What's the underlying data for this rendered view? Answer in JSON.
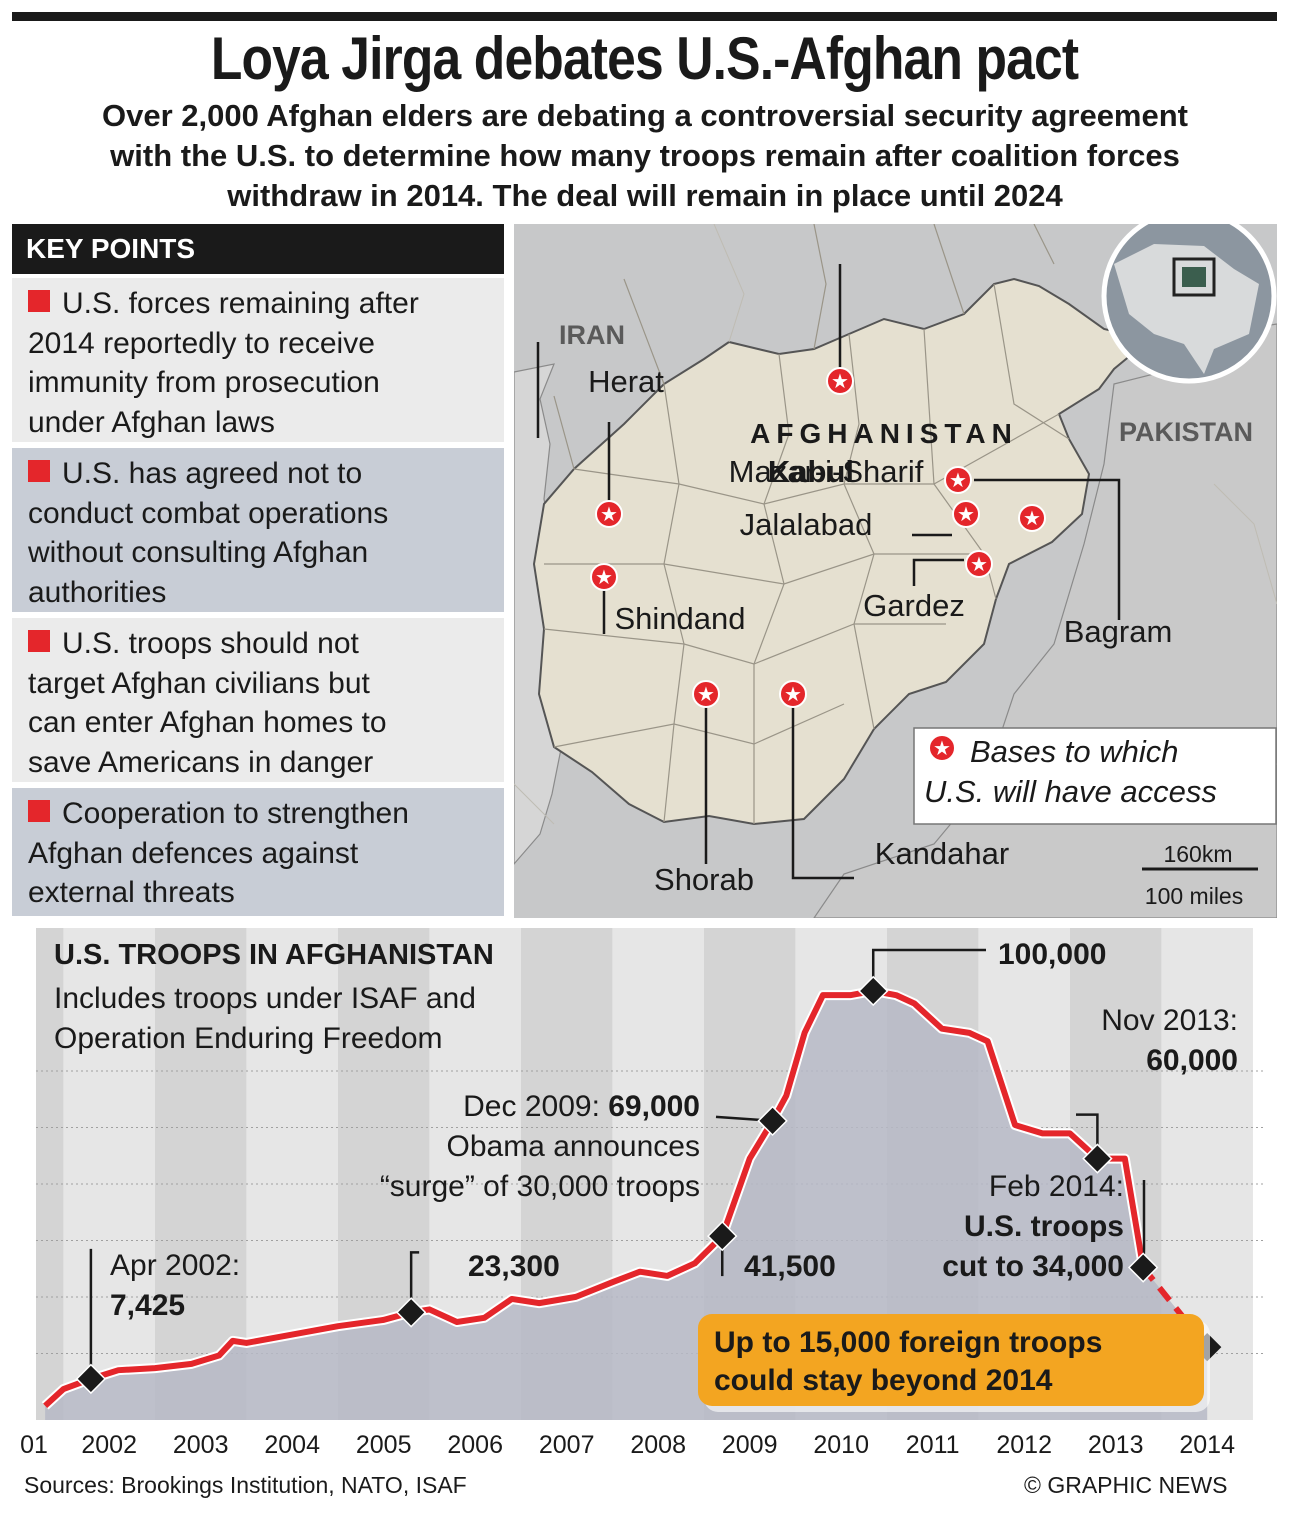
{
  "header": {
    "title": "Loya Jirga debates U.S.-Afghan pact",
    "subtitle_lines": [
      "Over 2,000 Afghan elders are debating a controversial security agreement",
      "with the U.S. to determine how many troops remain after coalition forces",
      "withdraw in 2014. The deal will remain in place until 2024"
    ]
  },
  "key_points": {
    "heading": "KEY POINTS",
    "items": [
      {
        "lines": [
          "U.S. forces remaining after",
          "2014 reportedly to receive",
          "immunity from prosecution",
          "under Afghan laws"
        ]
      },
      {
        "lines": [
          "U.S. has agreed not to",
          "conduct combat operations",
          "without consulting Afghan",
          "authorities"
        ]
      },
      {
        "lines": [
          "U.S. troops should not",
          "target Afghan civilians but",
          "can enter Afghan homes to",
          "save Americans in danger"
        ]
      },
      {
        "lines": [
          "Cooperation to strengthen",
          "Afghan defences against",
          "external threats"
        ]
      }
    ]
  },
  "map": {
    "country_label": "AFGHANISTAN",
    "neighbor_labels": [
      "IRAN",
      "PAKISTAN"
    ],
    "bases": [
      "Mazar-i-Sharif",
      "Herat",
      "Kabul",
      "Jalalabad",
      "Shindand",
      "Gardez",
      "Bagram",
      "Shorab",
      "Kandahar"
    ],
    "legend_lines": [
      "Bases to which",
      "U.S. will have access"
    ],
    "scale_km": "160km",
    "scale_miles": "100 miles",
    "colors": {
      "country": "#e5e0d0",
      "background": "#c7c8c9",
      "star": "#e4262b"
    }
  },
  "chart_data": {
    "type": "line",
    "title": "U.S. TROOPS IN AFGHANISTAN",
    "subtitle_lines": [
      "Includes troops under ISAF and",
      "Operation Enduring Freedom"
    ],
    "x_tick_labels": [
      "01",
      "2002",
      "2003",
      "2004",
      "2005",
      "2006",
      "2007",
      "2008",
      "2009",
      "2010",
      "2011",
      "2012",
      "2013",
      "2014"
    ],
    "ylim": [
      0,
      105000
    ],
    "series": [
      {
        "x": [
          2001.8,
          2002.0,
          2002.3,
          2002.6,
          2003.0,
          2003.4,
          2003.7,
          2003.85,
          2004.0,
          2004.5,
          2005.0,
          2005.5,
          2005.8,
          2006.0,
          2006.3,
          2006.6,
          2006.9,
          2007.2,
          2007.6,
          2008.0,
          2008.3,
          2008.6,
          2008.9,
          2009.2,
          2009.5,
          2009.75,
          2009.9,
          2010.1,
          2010.3,
          2010.6,
          2010.85,
          2011.1,
          2011.3,
          2011.6,
          2011.9,
          2012.1,
          2012.4,
          2012.7,
          2013.0,
          2013.3,
          2013.6,
          2013.8
        ],
        "values": [
          1000,
          5000,
          7425,
          9500,
          10000,
          11000,
          13000,
          16500,
          16000,
          18000,
          20000,
          21500,
          23300,
          24000,
          21000,
          22000,
          26500,
          25500,
          27000,
          30500,
          33000,
          32000,
          35000,
          41500,
          60000,
          69000,
          75000,
          90000,
          99000,
          99000,
          100000,
          99000,
          97000,
          91000,
          90000,
          88000,
          68000,
          66000,
          66000,
          60000,
          60000,
          34000
        ],
        "projected": {
          "x": [
            2013.8,
            2014.5
          ],
          "values": [
            34000,
            15000
          ]
        }
      }
    ],
    "annotations": [
      {
        "lines": [
          "Apr 2002:",
          "7,425"
        ],
        "x": 2002.3,
        "y": 7425
      },
      {
        "lines": [
          "23,300"
        ],
        "x": 2005.8,
        "y": 23300
      },
      {
        "lines": [
          "41,500"
        ],
        "x": 2009.2,
        "y": 41500
      },
      {
        "lines": [
          "Dec 2009: 69,000",
          "Obama announces",
          "“surge” of 30,000 troops"
        ],
        "x": 2009.75,
        "y": 69000
      },
      {
        "lines": [
          "100,000"
        ],
        "x": 2010.85,
        "y": 100000
      },
      {
        "lines": [
          "Nov 2013:",
          "60,000"
        ],
        "x": 2013.3,
        "y": 60000
      },
      {
        "lines": [
          "Feb 2014:",
          "U.S. troops",
          "cut to 34,000"
        ],
        "x": 2013.8,
        "y": 34000
      }
    ],
    "callout_lines": [
      "Up to 15,000 foreign troops",
      "could stay beyond 2014"
    ],
    "colors": {
      "line": "#e4262b",
      "area": "#b6b8c6",
      "callout": "#f3a521"
    }
  },
  "footer": {
    "sources": "Sources: Brookings Institution, NATO, ISAF",
    "credit": "© GRAPHIC NEWS"
  }
}
